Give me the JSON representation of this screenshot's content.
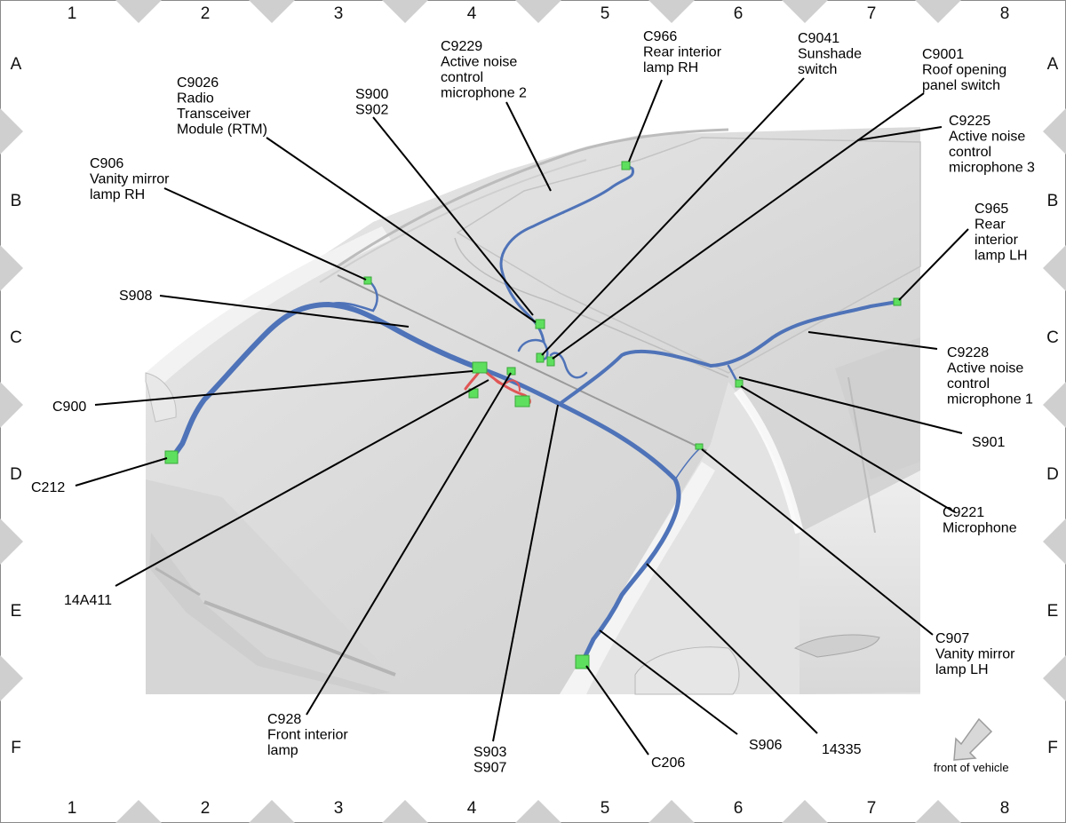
{
  "grid": {
    "columns": [
      "1",
      "2",
      "3",
      "4",
      "5",
      "6",
      "7",
      "8"
    ],
    "rows": [
      "A",
      "B",
      "C",
      "D",
      "E",
      "F"
    ]
  },
  "labels": {
    "c9229": [
      "C9229",
      "Active noise",
      "control",
      "microphone 2"
    ],
    "c966": [
      "C966",
      "Rear interior",
      "lamp RH"
    ],
    "c9041": [
      "C9041",
      "Sunshade",
      "switch"
    ],
    "c9001": [
      "C9001",
      "Roof opening",
      "panel switch"
    ],
    "c9026": [
      "C9026",
      "Radio",
      "Transceiver",
      "Module (RTM)"
    ],
    "s900": [
      "S900",
      "S902"
    ],
    "c9225": [
      "C9225",
      "Active noise",
      "control",
      "microphone 3"
    ],
    "c906": [
      "C906",
      "Vanity mirror",
      "lamp RH"
    ],
    "c965": [
      "C965",
      "Rear",
      "interior",
      "lamp LH"
    ],
    "s908": [
      "S908"
    ],
    "c9228": [
      "C9228",
      "Active noise",
      "control",
      "microphone 1"
    ],
    "c900": [
      "C900"
    ],
    "s901": [
      "S901"
    ],
    "c212": [
      "C212"
    ],
    "c9221": [
      "C9221",
      "Microphone"
    ],
    "l14a411": [
      "14A411"
    ],
    "c907": [
      "C907",
      "Vanity mirror",
      "lamp LH"
    ],
    "c928": [
      "C928",
      "Front interior",
      "lamp"
    ],
    "s903": [
      "S903",
      "S907"
    ],
    "c206": [
      "C206"
    ],
    "s906": [
      "S906"
    ],
    "l14335": [
      "14335"
    ]
  },
  "front_of_vehicle": "front of vehicle",
  "colors": {
    "harness": "#4f73b8",
    "harness_dark": "#2c4a85",
    "connector": "#5ee05e",
    "red_wire": "#e05555",
    "panel": "#dedede",
    "frame_triangle": "#cfcfcf"
  },
  "icons": [
    "front-arrow-icon"
  ]
}
